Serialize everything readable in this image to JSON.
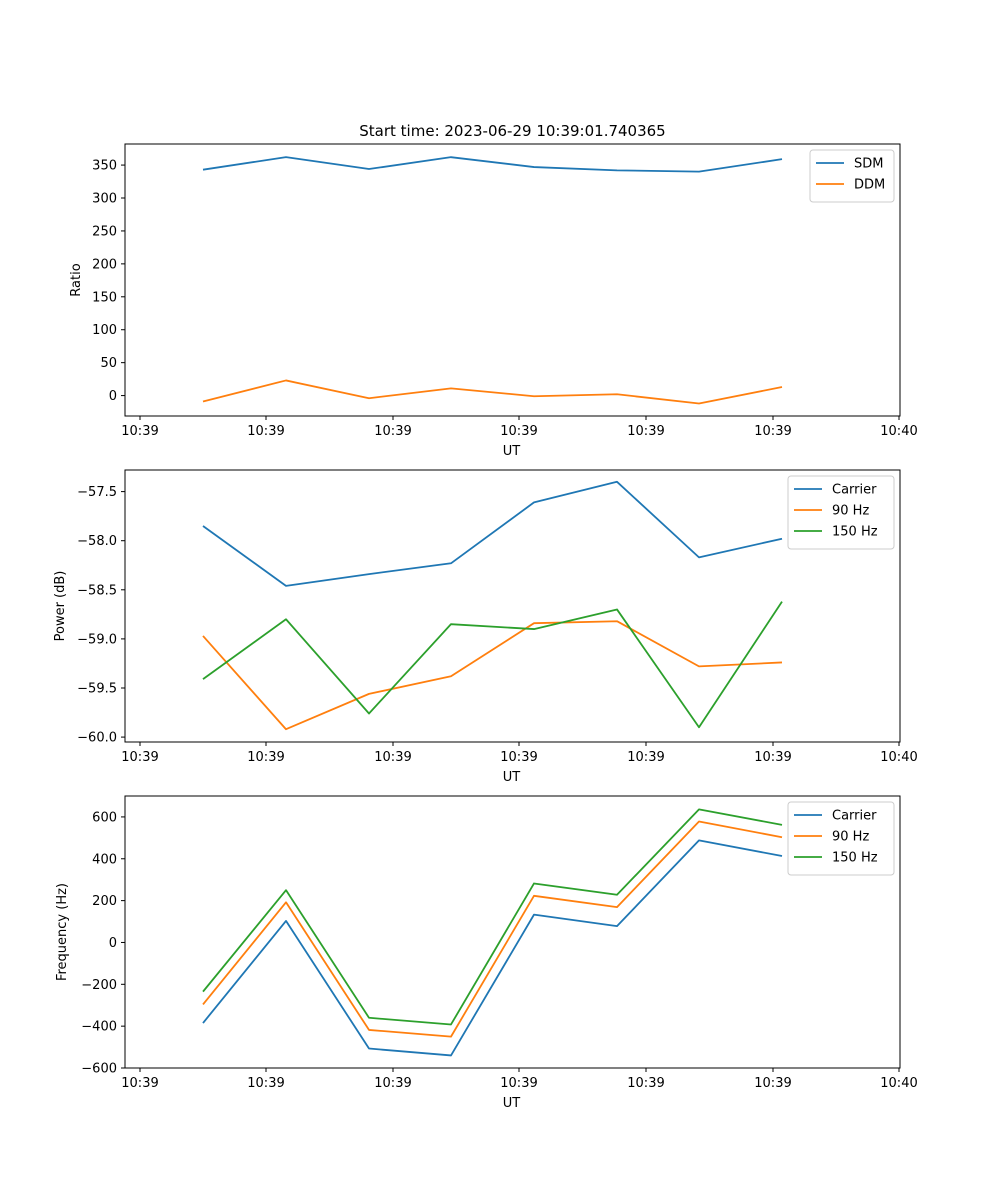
{
  "figure": {
    "suptitle": "Start time: 2023-06-29 10:39:01.740365"
  },
  "chart_data": [
    {
      "type": "line",
      "title": "Start time: 2023-06-29 10:39:01.740365",
      "xlabel": "UT",
      "ylabel": "Ratio",
      "x_ticks": [
        "10:39",
        "10:39",
        "10:39",
        "10:39",
        "10:39",
        "10:39",
        "10:39",
        "10:40"
      ],
      "xlim": [
        0,
        6
      ],
      "x": [
        0.5,
        1.15,
        1.8,
        2.45,
        3.1,
        3.75,
        4.4,
        5.05
      ],
      "ylim": [
        -31,
        382
      ],
      "y_ticks": [
        0,
        50,
        100,
        150,
        200,
        250,
        300,
        350
      ],
      "legend_position": "top-right",
      "series": [
        {
          "name": "SDM",
          "color": "#1f77b4",
          "values": [
            343,
            362,
            344,
            362,
            347,
            342,
            340,
            359
          ]
        },
        {
          "name": "DDM",
          "color": "#ff7f0e",
          "values": [
            -9,
            23,
            -4,
            11,
            -1,
            2,
            -12,
            13
          ]
        }
      ]
    },
    {
      "type": "line",
      "title": "",
      "xlabel": "UT",
      "ylabel": "Power (dB)",
      "x_ticks": [
        "10:39",
        "10:39",
        "10:39",
        "10:39",
        "10:39",
        "10:39",
        "10:39",
        "10:40"
      ],
      "xlim": [
        0,
        6
      ],
      "x": [
        0.5,
        1.15,
        1.8,
        2.45,
        3.1,
        3.75,
        4.4,
        5.05
      ],
      "ylim": [
        -60.05,
        -57.28
      ],
      "y_ticks": [
        -60.0,
        -59.5,
        -59.0,
        -58.5,
        -58.0,
        -57.5
      ],
      "legend_position": "top-right",
      "series": [
        {
          "name": "Carrier",
          "color": "#1f77b4",
          "values": [
            -57.85,
            -58.46,
            -58.34,
            -58.23,
            -57.61,
            -57.4,
            -58.17,
            -57.98
          ]
        },
        {
          "name": "90 Hz",
          "color": "#ff7f0e",
          "values": [
            -58.97,
            -59.92,
            -59.56,
            -59.38,
            -58.84,
            -58.82,
            -59.28,
            -59.24
          ]
        },
        {
          "name": "150 Hz",
          "color": "#2ca02c",
          "values": [
            -59.41,
            -58.8,
            -59.76,
            -58.85,
            -58.9,
            -58.7,
            -59.9,
            -58.62
          ]
        }
      ]
    },
    {
      "type": "line",
      "title": "",
      "xlabel": "UT",
      "ylabel": "Frequency (Hz)",
      "x_ticks": [
        "10:39",
        "10:39",
        "10:39",
        "10:39",
        "10:39",
        "10:39",
        "10:39",
        "10:40"
      ],
      "xlim": [
        0,
        6
      ],
      "x": [
        0.5,
        1.15,
        1.8,
        2.45,
        3.1,
        3.75,
        4.4,
        5.05
      ],
      "ylim": [
        -600,
        700
      ],
      "y_ticks": [
        -600,
        -400,
        -200,
        0,
        200,
        400,
        600
      ],
      "legend_position": "top-right",
      "series": [
        {
          "name": "Carrier",
          "color": "#1f77b4",
          "values": [
            -385,
            103,
            -507,
            -540,
            133,
            78,
            488,
            413
          ]
        },
        {
          "name": "90 Hz",
          "color": "#ff7f0e",
          "values": [
            -296,
            192,
            -418,
            -450,
            223,
            169,
            578,
            503
          ]
        },
        {
          "name": "150 Hz",
          "color": "#2ca02c",
          "values": [
            -235,
            250,
            -360,
            -392,
            282,
            228,
            636,
            562
          ]
        }
      ]
    }
  ]
}
